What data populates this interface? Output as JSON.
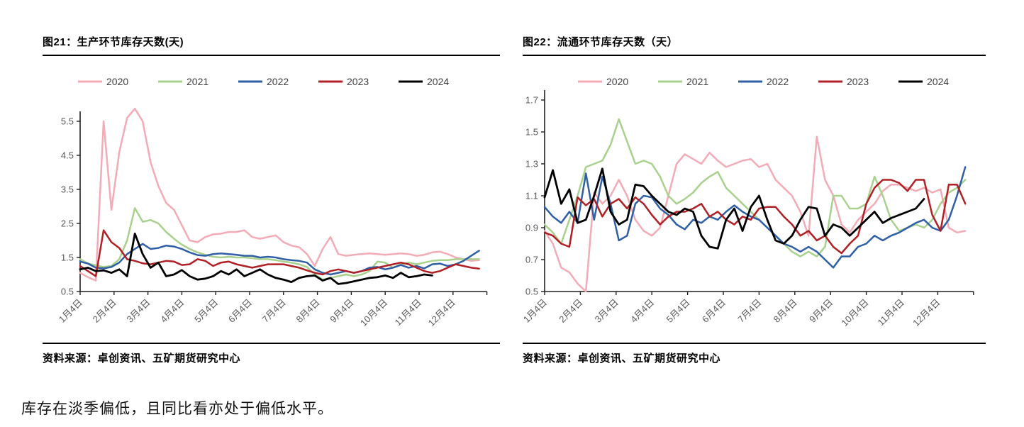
{
  "page": {
    "caption": "库存在淡季偏低，且同比看亦处于偏低水平。"
  },
  "charts": [
    {
      "title": "图21：生产环节库存天数(天)",
      "source": "资料来源：卓创资讯、五矿期货研究中心",
      "chart_data": {
        "type": "line",
        "title": "生产环节库存天数(天)",
        "x_unit": "week-of-year",
        "x_tick_labels": [
          "1月4日",
          "2月4日",
          "3月4日",
          "4月4日",
          "5月4日",
          "6月4日",
          "7月4日",
          "8月4日",
          "9月4日",
          "10月4日",
          "11月4日",
          "12月4日"
        ],
        "ylim": [
          0.5,
          5.9
        ],
        "yticks": [
          0.5,
          1.5,
          2.5,
          3.5,
          4.5,
          5.5
        ],
        "grid": false,
        "legend_position": "top",
        "series": [
          {
            "name": "2020",
            "color": "#f3abb6",
            "values": [
              1.05,
              0.92,
              0.82,
              5.5,
              2.9,
              4.6,
              5.6,
              5.87,
              5.5,
              4.3,
              3.6,
              3.1,
              2.9,
              2.45,
              2.0,
              1.95,
              2.1,
              2.18,
              2.2,
              2.25,
              2.25,
              2.3,
              2.1,
              2.05,
              2.1,
              2.15,
              1.95,
              1.85,
              1.8,
              1.6,
              1.25,
              1.75,
              2.1,
              1.6,
              1.55,
              1.58,
              1.6,
              1.62,
              1.6,
              1.58,
              1.6,
              1.62,
              1.6,
              1.55,
              1.58,
              1.65,
              1.67,
              1.6,
              1.5,
              1.45,
              1.4,
              1.42
            ]
          },
          {
            "name": "2021",
            "color": "#a9d18e",
            "values": [
              1.45,
              1.32,
              1.27,
              1.22,
              1.25,
              1.45,
              2.0,
              2.95,
              2.55,
              2.6,
              2.5,
              2.25,
              2.05,
              1.88,
              1.75,
              1.65,
              1.58,
              1.52,
              1.5,
              1.52,
              1.5,
              1.5,
              1.48,
              1.45,
              1.45,
              1.42,
              1.38,
              1.35,
              1.3,
              1.22,
              1.0,
              0.85,
              0.9,
              0.95,
              1.0,
              0.95,
              1.0,
              1.1,
              1.38,
              1.35,
              1.2,
              1.3,
              1.35,
              1.3,
              1.35,
              1.4,
              1.42,
              1.42,
              1.45,
              1.45,
              1.45,
              1.45
            ]
          },
          {
            "name": "2022",
            "color": "#2f5fa5",
            "values": [
              1.38,
              1.32,
              1.2,
              1.18,
              1.22,
              1.35,
              1.6,
              1.75,
              1.9,
              1.75,
              1.78,
              1.85,
              1.82,
              1.75,
              1.65,
              1.57,
              1.55,
              1.6,
              1.62,
              1.6,
              1.58,
              1.55,
              1.55,
              1.5,
              1.52,
              1.5,
              1.45,
              1.42,
              1.4,
              1.35,
              1.15,
              1.05,
              1.0,
              1.05,
              1.1,
              1.05,
              1.1,
              1.2,
              1.22,
              1.15,
              1.2,
              1.28,
              1.2,
              1.25,
              1.18,
              1.3,
              1.32,
              1.25,
              1.3,
              1.4,
              1.55,
              1.7
            ]
          },
          {
            "name": "2023",
            "color": "#b02025",
            "values": [
              1.25,
              1.1,
              0.95,
              2.3,
              1.95,
              1.78,
              1.45,
              1.4,
              1.33,
              1.3,
              1.35,
              1.4,
              1.38,
              1.28,
              1.3,
              1.45,
              1.4,
              1.25,
              1.35,
              1.38,
              1.3,
              1.25,
              1.2,
              1.25,
              1.3,
              1.3,
              1.3,
              1.25,
              1.2,
              1.12,
              1.05,
              1.0,
              1.1,
              1.15,
              1.1,
              1.05,
              1.1,
              1.15,
              1.2,
              1.25,
              1.3,
              1.35,
              1.3,
              1.2,
              1.1,
              1.05,
              1.1,
              1.2,
              1.3,
              1.25,
              1.2,
              1.17
            ]
          },
          {
            "name": "2024",
            "color": "#000000",
            "values": [
              1.15,
              1.2,
              1.1,
              1.12,
              1.05,
              1.15,
              0.95,
              2.2,
              1.6,
              1.2,
              1.35,
              0.95,
              1.0,
              1.13,
              0.95,
              0.85,
              0.88,
              0.95,
              1.1,
              1.0,
              1.15,
              0.95,
              1.05,
              1.15,
              1.0,
              0.9,
              0.85,
              0.78,
              0.9,
              0.95,
              0.97,
              0.82,
              0.9,
              0.72,
              0.75,
              0.8,
              0.85,
              0.9,
              0.92,
              0.97,
              0.9,
              1.05,
              0.92,
              0.95,
              1.0,
              0.97,
              null,
              null,
              null,
              null,
              null,
              null
            ]
          }
        ]
      }
    },
    {
      "title": "图22：流通环节库存天数（天）",
      "source": "资料来源：卓创资讯、五矿期货研究中心",
      "chart_data": {
        "type": "line",
        "title": "流通环节库存天数（天）",
        "x_unit": "week-of-year",
        "x_tick_labels": [
          "1月4日",
          "2月4日",
          "3月4日",
          "4月4日",
          "5月4日",
          "6月4日",
          "7月4日",
          "8月4日",
          "9月4日",
          "10月4日",
          "11月4日",
          "12月4日"
        ],
        "ylim": [
          0.5,
          1.7
        ],
        "yticks": [
          0.5,
          0.7,
          0.9,
          1.1,
          1.3,
          1.5,
          1.7
        ],
        "grid": false,
        "legend_position": "top",
        "series": [
          {
            "name": "2020",
            "color": "#f3abb6",
            "values": [
              0.88,
              0.8,
              0.65,
              0.62,
              0.55,
              0.5,
              1.12,
              1.05,
              1.1,
              1.2,
              1.1,
              0.95,
              0.88,
              0.85,
              0.9,
              1.1,
              1.3,
              1.36,
              1.33,
              1.3,
              1.37,
              1.32,
              1.28,
              1.3,
              1.32,
              1.33,
              1.28,
              1.3,
              1.2,
              1.15,
              1.1,
              1.0,
              0.85,
              1.47,
              1.2,
              1.1,
              0.92,
              0.87,
              0.95,
              1.0,
              1.05,
              1.13,
              1.17,
              1.17,
              1.15,
              1.13,
              1.15,
              1.12,
              1.14,
              0.9,
              0.87,
              0.88
            ]
          },
          {
            "name": "2021",
            "color": "#a9d18e",
            "values": [
              0.92,
              0.87,
              0.8,
              0.95,
              1.1,
              1.28,
              1.3,
              1.32,
              1.42,
              1.58,
              1.44,
              1.3,
              1.32,
              1.3,
              1.22,
              1.1,
              1.05,
              1.08,
              1.12,
              1.18,
              1.22,
              1.25,
              1.15,
              1.1,
              1.05,
              1.0,
              0.95,
              0.9,
              0.85,
              0.8,
              0.75,
              0.72,
              0.75,
              0.72,
              0.78,
              1.1,
              1.1,
              1.02,
              1.02,
              1.05,
              1.22,
              1.1,
              0.95,
              0.88,
              0.9,
              0.92,
              0.9,
              0.95,
              1.05,
              1.12,
              1.15,
              1.2
            ]
          },
          {
            "name": "2022",
            "color": "#2f5fa5",
            "values": [
              1.03,
              0.97,
              0.93,
              1.0,
              0.93,
              1.24,
              0.95,
              1.22,
              1.05,
              0.82,
              0.85,
              1.05,
              1.1,
              1.09,
              1.02,
              0.98,
              0.92,
              0.89,
              0.95,
              0.93,
              0.97,
              0.95,
              1.0,
              1.04,
              1.0,
              0.97,
              0.95,
              0.9,
              0.85,
              0.8,
              0.78,
              0.75,
              0.78,
              0.75,
              0.7,
              0.65,
              0.72,
              0.72,
              0.78,
              0.8,
              0.85,
              0.82,
              0.85,
              0.87,
              0.9,
              0.93,
              0.95,
              0.9,
              0.88,
              0.95,
              1.1,
              1.28
            ]
          },
          {
            "name": "2023",
            "color": "#b02025",
            "values": [
              0.87,
              0.85,
              0.8,
              0.78,
              1.09,
              1.04,
              1.08,
              0.97,
              1.05,
              1.08,
              1.02,
              1.09,
              1.05,
              0.98,
              0.92,
              0.97,
              1.0,
              1.0,
              1.02,
              1.05,
              0.97,
              1.0,
              0.95,
              0.92,
              0.97,
              0.95,
              1.02,
              1.03,
              1.03,
              0.97,
              0.92,
              0.85,
              0.88,
              0.82,
              0.85,
              0.78,
              0.74,
              0.8,
              0.85,
              1.05,
              1.15,
              1.2,
              1.2,
              1.18,
              1.13,
              1.2,
              1.2,
              0.98,
              0.88,
              1.17,
              1.17,
              1.05
            ]
          },
          {
            "name": "2024",
            "color": "#000000",
            "values": [
              1.09,
              1.26,
              1.05,
              1.14,
              0.93,
              0.95,
              1.1,
              1.27,
              1.0,
              0.92,
              0.95,
              1.17,
              1.16,
              1.1,
              1.05,
              1.0,
              0.98,
              1.02,
              1.0,
              0.85,
              0.78,
              0.77,
              0.95,
              1.02,
              0.88,
              1.03,
              1.1,
              0.95,
              0.82,
              0.8,
              0.85,
              0.95,
              1.03,
              1.02,
              0.85,
              0.92,
              0.9,
              0.85,
              0.9,
              0.95,
              1.0,
              0.93,
              0.96,
              0.98,
              1.0,
              1.02,
              1.08,
              null,
              null,
              null,
              null,
              null
            ]
          }
        ]
      }
    }
  ]
}
